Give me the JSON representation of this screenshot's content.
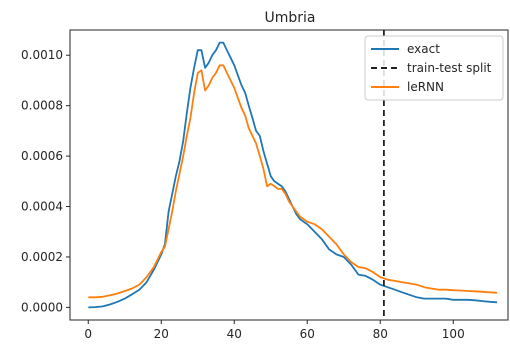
{
  "chart_data": {
    "type": "line",
    "title": "Umbria",
    "xlabel": "",
    "ylabel": "",
    "xlim": [
      -5,
      115
    ],
    "ylim": [
      -5e-05,
      0.0011
    ],
    "xticks": [
      0,
      20,
      40,
      60,
      80,
      100
    ],
    "yticks": [
      0.0,
      0.0002,
      0.0004,
      0.0006,
      0.0008,
      0.001
    ],
    "xtick_labels": [
      "0",
      "20",
      "40",
      "60",
      "80",
      "100"
    ],
    "ytick_labels": [
      "0.0000",
      "0.0002",
      "0.0004",
      "0.0006",
      "0.0008",
      "0.0010"
    ],
    "grid": false,
    "legend_position": "top-right",
    "vline": {
      "x": 81,
      "name": "train-test split",
      "color": "#222222",
      "style": "dashed"
    },
    "series": [
      {
        "name": "exact",
        "color": "#1f77b4",
        "x": [
          0,
          2,
          4,
          6,
          8,
          10,
          12,
          14,
          16,
          18,
          20,
          21,
          22,
          23,
          24,
          25,
          26,
          27,
          28,
          29,
          30,
          31,
          32,
          33,
          34,
          35,
          36,
          37,
          38,
          39,
          40,
          41,
          42,
          43,
          44,
          45,
          46,
          47,
          48,
          49,
          50,
          51,
          52,
          53,
          54,
          55,
          56,
          57,
          58,
          59,
          60,
          62,
          64,
          66,
          68,
          70,
          72,
          74,
          76,
          78,
          80,
          82,
          84,
          86,
          88,
          90,
          92,
          94,
          96,
          98,
          100,
          102,
          104,
          106,
          108,
          110,
          112
        ],
        "y": [
          0.0,
          1e-06,
          4e-06,
          1.2e-05,
          2.2e-05,
          3.5e-05,
          5.2e-05,
          7e-05,
          0.0001,
          0.00015,
          0.00021,
          0.00025,
          0.00038,
          0.00045,
          0.00052,
          0.00058,
          0.00066,
          0.00077,
          0.00087,
          0.00095,
          0.00102,
          0.00102,
          0.00095,
          0.00097,
          0.001,
          0.00102,
          0.00105,
          0.00105,
          0.00102,
          0.00099,
          0.00096,
          0.00092,
          0.00088,
          0.00085,
          0.0008,
          0.00075,
          0.0007,
          0.00068,
          0.00062,
          0.00057,
          0.00052,
          0.0005,
          0.00049,
          0.00048,
          0.00046,
          0.00043,
          0.0004,
          0.00037,
          0.00035,
          0.00034,
          0.00033,
          0.0003,
          0.00027,
          0.00023,
          0.00021,
          0.0002,
          0.00017,
          0.00013,
          0.000125,
          0.00011,
          9e-05,
          8e-05,
          7e-05,
          6e-05,
          5e-05,
          4e-05,
          3.5e-05,
          3.5e-05,
          3.5e-05,
          3.5e-05,
          3e-05,
          3e-05,
          3e-05,
          2.8e-05,
          2.5e-05,
          2.2e-05,
          2e-05
        ]
      },
      {
        "name": "leRNN",
        "color": "#ff7f0e",
        "x": [
          0,
          2,
          4,
          6,
          8,
          10,
          12,
          14,
          16,
          18,
          20,
          21,
          22,
          23,
          24,
          25,
          26,
          27,
          28,
          29,
          30,
          31,
          32,
          33,
          34,
          35,
          36,
          37,
          38,
          39,
          40,
          41,
          42,
          43,
          44,
          45,
          46,
          47,
          48,
          49,
          50,
          51,
          52,
          53,
          54,
          55,
          56,
          57,
          58,
          59,
          60,
          62,
          64,
          66,
          68,
          70,
          72,
          74,
          76,
          78,
          80,
          82,
          84,
          86,
          88,
          90,
          92,
          94,
          96,
          98,
          100,
          102,
          104,
          106,
          108,
          110,
          112
        ],
        "y": [
          4e-05,
          4e-05,
          4.2e-05,
          4.8e-05,
          5.5e-05,
          6.5e-05,
          7.5e-05,
          9e-05,
          0.00012,
          0.00016,
          0.00022,
          0.00024,
          0.00031,
          0.00038,
          0.00046,
          0.00053,
          0.0006,
          0.00068,
          0.00075,
          0.00085,
          0.00093,
          0.00094,
          0.00086,
          0.00088,
          0.00091,
          0.00093,
          0.00096,
          0.00096,
          0.00093,
          0.0009,
          0.00087,
          0.00083,
          0.00079,
          0.00076,
          0.00071,
          0.00068,
          0.00065,
          0.0006,
          0.00055,
          0.00048,
          0.00049,
          0.00048,
          0.00047,
          0.00047,
          0.00045,
          0.00042,
          0.0004,
          0.00038,
          0.00036,
          0.00035,
          0.00034,
          0.00033,
          0.00031,
          0.00028,
          0.00025,
          0.00021,
          0.00018,
          0.00016,
          0.000155,
          0.00014,
          0.00012,
          0.00011,
          0.000105,
          0.0001,
          9.5e-05,
          9e-05,
          8e-05,
          7.5e-05,
          7e-05,
          7e-05,
          6.8e-05,
          6.7e-05,
          6.5e-05,
          6.4e-05,
          6.2e-05,
          6e-05,
          5.8e-05
        ]
      }
    ]
  }
}
